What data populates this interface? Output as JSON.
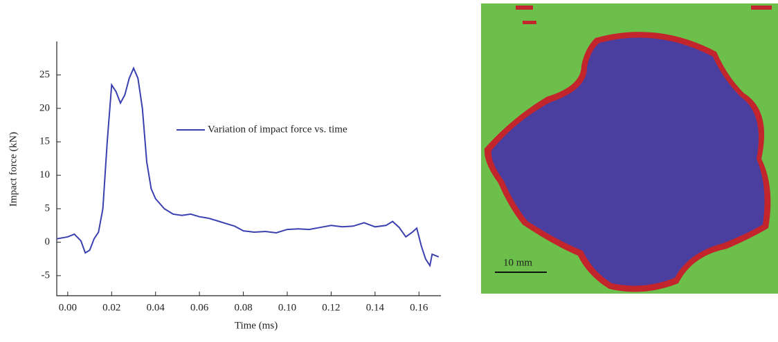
{
  "chart_data": {
    "type": "line",
    "xlabel": "Time (ms)",
    "ylabel": "Impact force (kN)",
    "x": [
      -0.005,
      0.0,
      0.003,
      0.006,
      0.008,
      0.01,
      0.012,
      0.014,
      0.016,
      0.018,
      0.02,
      0.022,
      0.024,
      0.026,
      0.028,
      0.03,
      0.032,
      0.034,
      0.036,
      0.038,
      0.04,
      0.044,
      0.048,
      0.052,
      0.056,
      0.06,
      0.064,
      0.068,
      0.072,
      0.076,
      0.08,
      0.085,
      0.09,
      0.095,
      0.1,
      0.105,
      0.11,
      0.115,
      0.12,
      0.125,
      0.13,
      0.135,
      0.14,
      0.145,
      0.148,
      0.151,
      0.154,
      0.157,
      0.159,
      0.161,
      0.163,
      0.165,
      0.166,
      0.169
    ],
    "series": [
      {
        "name": "Variation of impact force vs. time",
        "color": "#3a3fb0",
        "values": [
          0.5,
          0.8,
          1.2,
          0.2,
          -1.6,
          -1.2,
          0.5,
          1.5,
          5,
          15,
          23.5,
          22.5,
          20.8,
          22,
          24.5,
          26,
          24.5,
          20,
          12,
          8,
          6.5,
          5,
          4.2,
          4,
          4.2,
          3.8,
          3.6,
          3.2,
          2.8,
          2.4,
          1.7,
          1.5,
          1.6,
          1.4,
          1.9,
          2.0,
          1.9,
          2.2,
          2.5,
          2.3,
          2.4,
          2.9,
          2.3,
          2.5,
          3.1,
          2.2,
          0.8,
          1.5,
          2.1,
          -0.5,
          -2.5,
          -3.5,
          -1.8,
          -2.2
        ]
      }
    ],
    "xlim": [
      -0.005,
      0.17
    ],
    "ylim": [
      -8,
      30
    ],
    "xticks": [
      {
        "value": 0,
        "label": "0.00"
      },
      {
        "value": 0.02,
        "label": "0.02"
      },
      {
        "value": 0.04,
        "label": "0.04"
      },
      {
        "value": 0.06,
        "label": "0.06"
      },
      {
        "value": 0.08,
        "label": "0.08"
      },
      {
        "value": 0.1,
        "label": "0.10"
      },
      {
        "value": 0.12,
        "label": "0.12"
      },
      {
        "value": 0.14,
        "label": "0.14"
      },
      {
        "value": 0.16,
        "label": "0.16"
      }
    ],
    "yticks": [
      -5,
      0,
      5,
      10,
      15,
      20,
      25
    ],
    "grid": false
  },
  "image": {
    "scale_label": "10 mm"
  }
}
